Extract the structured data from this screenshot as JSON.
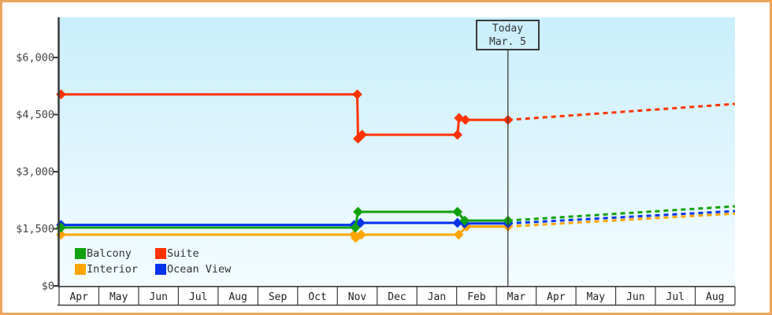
{
  "frame": {
    "border_color": "#ECA55D",
    "background": "#ffffff"
  },
  "today_box": {
    "line1": "Today",
    "line2": "Mar. 5"
  },
  "legend": [
    {
      "label": "Balcony",
      "color": "#12A10E"
    },
    {
      "label": "Suite",
      "color": "#FF3300"
    },
    {
      "label": "Interior",
      "color": "#FFA502"
    },
    {
      "label": "Ocean View",
      "color": "#0533EB"
    }
  ],
  "chart_data": {
    "type": "line",
    "title": "",
    "xlabel": "",
    "ylabel": "",
    "units": "USD per person",
    "ylim": [
      0,
      6000
    ],
    "grid": false,
    "legend_position": "bottom-left inside plot",
    "plot_background": {
      "top": "#C9EEFB",
      "bottom": "#F4FCFF"
    },
    "y_ticks": [
      {
        "v": 0,
        "label": "$0"
      },
      {
        "v": 1500,
        "label": "$1,500"
      },
      {
        "v": 3000,
        "label": "$3,000"
      },
      {
        "v": 4500,
        "label": "$4,500"
      },
      {
        "v": 6000,
        "label": "$6,000"
      }
    ],
    "months": [
      "Apr",
      "May",
      "Jun",
      "Jul",
      "Aug",
      "Sep",
      "Oct",
      "Nov",
      "Dec",
      "Jan",
      "Feb",
      "Mar",
      "Apr",
      "May",
      "Jun",
      "Jul",
      "Aug"
    ],
    "today": {
      "t": 11.29,
      "label": "Today",
      "date": "Mar. 5"
    },
    "note": "t is months since start of first Apr cell; solid = price history, dotted = forecast after today",
    "series": [
      {
        "name": "Interior",
        "color": "#FFA502",
        "points": [
          [
            0.05,
            1345
          ],
          [
            7.42,
            1345
          ],
          [
            7.46,
            1260
          ],
          [
            7.6,
            1345
          ],
          [
            10.05,
            1345
          ],
          [
            10.25,
            1560
          ],
          [
            11.29,
            1560
          ]
        ],
        "projection": [
          [
            11.29,
            1560
          ],
          [
            17,
            1900
          ]
        ]
      },
      {
        "name": "Ocean View",
        "color": "#0533EB",
        "points": [
          [
            0.05,
            1600
          ],
          [
            7.42,
            1600
          ],
          [
            7.45,
            1555
          ],
          [
            7.58,
            1655
          ],
          [
            10.02,
            1655
          ],
          [
            10.2,
            1640
          ],
          [
            11.29,
            1640
          ]
        ],
        "projection": [
          [
            11.29,
            1640
          ],
          [
            17,
            1965
          ]
        ]
      },
      {
        "name": "Balcony",
        "color": "#12A10E",
        "points": [
          [
            0.05,
            1530
          ],
          [
            7.45,
            1530
          ],
          [
            7.52,
            1945
          ],
          [
            10.02,
            1945
          ],
          [
            10.2,
            1715
          ],
          [
            11.29,
            1715
          ]
        ],
        "projection": [
          [
            11.29,
            1715
          ],
          [
            17,
            2090
          ]
        ]
      },
      {
        "name": "Suite",
        "color": "#FF3300",
        "points": [
          [
            0.05,
            5030
          ],
          [
            7.5,
            5030
          ],
          [
            7.52,
            3870
          ],
          [
            7.62,
            3970
          ],
          [
            10.02,
            3970
          ],
          [
            10.06,
            4410
          ],
          [
            10.22,
            4360
          ],
          [
            11.29,
            4360
          ]
        ],
        "projection": [
          [
            11.29,
            4360
          ],
          [
            17,
            4780
          ]
        ]
      }
    ]
  }
}
